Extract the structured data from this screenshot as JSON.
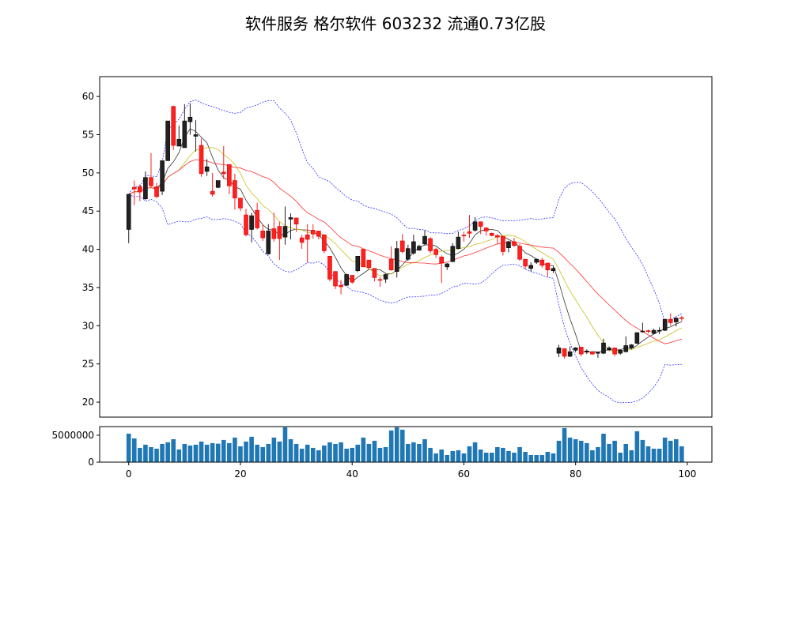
{
  "chart_data": {
    "type": "candlestick",
    "title": "软件服务 格尔软件 603232 流通0.73亿股",
    "xlim": [
      -5.2,
      104.4
    ],
    "ylim": [
      18.04,
      62.6
    ],
    "volume_ylim": [
      0,
      6600000
    ],
    "x_ticks": [
      0,
      20,
      40,
      60,
      80,
      100
    ],
    "y_ticks": [
      20,
      25,
      30,
      35,
      40,
      45,
      50,
      55,
      60
    ],
    "volume_y_ticks": [
      0,
      5000000
    ],
    "up_color": "#222222",
    "down_color": "#ff2020",
    "volume_color": "#1f77b4",
    "indicators": [
      {
        "name": "MA5",
        "window": 5,
        "color": "#333333"
      },
      {
        "name": "MA10",
        "window": 10,
        "color": "#c8c020"
      },
      {
        "name": "MA20",
        "window": 20,
        "color": "#ff3030"
      },
      {
        "name": "BOLL",
        "window": 20,
        "k": 2,
        "color": "#3030ff"
      }
    ],
    "ohlc": [
      [
        42.6,
        47.2,
        40.8,
        47.2
      ],
      [
        48.1,
        49.0,
        45.8,
        47.9
      ],
      [
        48.2,
        48.5,
        46.3,
        47.5
      ],
      [
        46.6,
        50.2,
        46.5,
        49.4
      ],
      [
        49.4,
        52.6,
        48.1,
        48.3
      ],
      [
        48.2,
        48.7,
        46.7,
        46.9
      ],
      [
        47.6,
        51.6,
        47.1,
        51.6
      ],
      [
        51.6,
        56.8,
        51.6,
        56.8
      ],
      [
        58.7,
        58.8,
        53.0,
        53.6
      ],
      [
        53.5,
        56.2,
        53.5,
        54.4
      ],
      [
        53.3,
        59.0,
        53.3,
        56.8
      ],
      [
        56.7,
        59.1,
        55.0,
        57.3
      ],
      [
        54.8,
        56.9,
        52.8,
        55.0
      ],
      [
        53.6,
        54.5,
        49.5,
        49.9
      ],
      [
        50.2,
        51.8,
        49.6,
        50.8
      ],
      [
        47.6,
        50.0,
        46.9,
        47.2
      ],
      [
        48.1,
        49.0,
        48.0,
        49.0
      ],
      [
        50.1,
        53.5,
        49.2,
        49.9
      ],
      [
        51.1,
        51.1,
        47.2,
        48.3
      ],
      [
        49.0,
        49.9,
        45.2,
        46.7
      ],
      [
        46.7,
        46.7,
        45.0,
        45.4
      ],
      [
        44.5,
        45.3,
        41.7,
        41.9
      ],
      [
        42.6,
        44.8,
        40.9,
        44.4
      ],
      [
        45.1,
        46.1,
        42.6,
        42.8
      ],
      [
        42.4,
        43.2,
        41.1,
        41.5
      ],
      [
        39.4,
        43.3,
        39.3,
        42.4
      ],
      [
        42.7,
        44.8,
        41.0,
        41.4
      ],
      [
        43.0,
        43.6,
        38.6,
        41.4
      ],
      [
        41.6,
        45.6,
        40.6,
        43.0
      ],
      [
        43.95,
        44.7,
        41.3,
        44.15
      ],
      [
        44.1,
        44.1,
        42.3,
        43.3
      ],
      [
        41.5,
        41.9,
        40.05,
        40.9
      ],
      [
        41.9,
        43.3,
        38.3,
        41.3
      ],
      [
        42.5,
        43.3,
        41.4,
        42.0
      ],
      [
        42.4,
        42.4,
        41.3,
        41.7
      ],
      [
        41.9,
        41.9,
        39.5,
        39.8
      ],
      [
        39.1,
        39.1,
        35.8,
        36.1
      ],
      [
        37.1,
        37.1,
        34.8,
        35.2
      ],
      [
        35.3,
        36.0,
        34.1,
        35.1
      ],
      [
        35.3,
        36.8,
        35.2,
        36.7
      ],
      [
        36.6,
        36.6,
        35.5,
        35.7
      ],
      [
        37.2,
        39.1,
        37.0,
        39.1
      ],
      [
        40.0,
        40.1,
        37.7,
        37.7
      ],
      [
        38.6,
        38.6,
        37.4,
        37.6
      ],
      [
        37.5,
        37.5,
        35.8,
        36.3
      ],
      [
        36.05,
        36.4,
        35.1,
        35.95
      ],
      [
        36.1,
        36.8,
        35.6,
        36.7
      ],
      [
        38.7,
        40.4,
        37.2,
        37.3
      ],
      [
        37.1,
        41.1,
        36.3,
        40.1
      ],
      [
        41.1,
        42.0,
        39.5,
        39.7
      ],
      [
        38.7,
        40.6,
        38.5,
        40.1
      ],
      [
        39.5,
        41.9,
        39.3,
        41.0
      ],
      [
        39.9,
        40.6,
        39.8,
        40.4
      ],
      [
        40.7,
        42.5,
        40.5,
        41.7
      ],
      [
        41.4,
        41.6,
        39.5,
        39.8
      ],
      [
        40.0,
        40.2,
        38.9,
        39.3
      ],
      [
        39.0,
        39.2,
        35.6,
        38.2
      ],
      [
        37.7,
        38.2,
        37.3,
        38.1
      ],
      [
        38.4,
        40.8,
        38.3,
        40.4
      ],
      [
        40.1,
        42.3,
        40.0,
        41.6
      ],
      [
        41.85,
        42.3,
        41.0,
        41.75
      ],
      [
        42.3,
        44.5,
        41.5,
        42.1
      ],
      [
        42.5,
        44.2,
        42.3,
        43.6
      ],
      [
        43.6,
        43.6,
        42.0,
        43.0
      ],
      [
        42.8,
        42.9,
        41.8,
        42.4
      ],
      [
        42.1,
        42.2,
        41.7,
        41.8
      ],
      [
        41.8,
        42.0,
        40.7,
        41.6
      ],
      [
        41.7,
        41.7,
        39.2,
        39.7
      ],
      [
        40.2,
        41.1,
        39.6,
        41.0
      ],
      [
        41.0,
        41.5,
        40.3,
        40.5
      ],
      [
        40.4,
        40.7,
        38.5,
        38.7
      ],
      [
        38.7,
        38.7,
        37.4,
        37.8
      ],
      [
        37.5,
        38.3,
        37.1,
        37.9
      ],
      [
        38.3,
        38.8,
        38.1,
        38.7
      ],
      [
        38.6,
        38.9,
        37.6,
        37.9
      ],
      [
        38.2,
        38.2,
        36.4,
        37.3
      ],
      [
        37.2,
        37.7,
        36.9,
        37.5
      ],
      [
        26.4,
        27.5,
        25.9,
        27.1
      ],
      [
        27.0,
        27.0,
        25.7,
        26.0
      ],
      [
        26.0,
        27.3,
        25.9,
        26.6
      ],
      [
        26.8,
        27.2,
        26.5,
        27.1
      ],
      [
        27.2,
        27.2,
        26.0,
        26.3
      ],
      [
        26.6,
        26.9,
        26.3,
        26.7
      ],
      [
        26.6,
        26.6,
        26.2,
        26.3
      ],
      [
        26.4,
        26.6,
        25.8,
        26.5
      ],
      [
        26.4,
        28.3,
        26.3,
        27.75
      ],
      [
        26.85,
        27.3,
        26.7,
        27.1
      ],
      [
        27.1,
        27.1,
        26.0,
        26.3
      ],
      [
        26.4,
        26.9,
        26.2,
        26.8
      ],
      [
        26.6,
        28.6,
        26.5,
        27.4
      ],
      [
        27.1,
        27.6,
        26.9,
        27.5
      ],
      [
        27.7,
        29.1,
        27.6,
        29.1
      ],
      [
        29.2,
        30.4,
        29.1,
        29.3
      ],
      [
        29.35,
        29.5,
        29.0,
        29.25
      ],
      [
        29.0,
        29.6,
        28.9,
        29.4
      ],
      [
        29.3,
        29.8,
        28.9,
        29.4
      ],
      [
        29.4,
        30.85,
        29.3,
        30.85
      ],
      [
        30.85,
        31.6,
        30.0,
        30.4
      ],
      [
        30.5,
        31.1,
        29.9,
        31.0
      ],
      [
        31.05,
        31.3,
        30.6,
        30.95
      ]
    ],
    "volume": [
      5290000,
      4410000,
      2650000,
      3240000,
      2790000,
      2500000,
      3380000,
      3680000,
      4260000,
      2350000,
      3380000,
      3090000,
      3240000,
      3820000,
      3240000,
      3530000,
      3430000,
      4120000,
      3530000,
      4560000,
      2940000,
      3820000,
      4710000,
      3240000,
      2790000,
      3380000,
      4560000,
      3820000,
      6470000,
      4260000,
      3380000,
      2500000,
      3240000,
      2650000,
      2210000,
      3090000,
      3680000,
      3380000,
      3680000,
      2500000,
      2650000,
      3240000,
      4560000,
      3380000,
      3970000,
      2650000,
      2790000,
      5880000,
      6470000,
      6030000,
      3380000,
      3680000,
      3380000,
      4260000,
      2650000,
      1620000,
      2350000,
      1320000,
      2060000,
      2210000,
      1620000,
      2940000,
      3680000,
      2350000,
      1760000,
      1760000,
      2790000,
      2650000,
      2060000,
      1760000,
      2790000,
      1910000,
      1320000,
      1320000,
      1320000,
      1910000,
      1620000,
      3970000,
      6320000,
      4560000,
      4260000,
      3970000,
      3530000,
      2210000,
      2790000,
      5290000,
      3380000,
      3970000,
      1760000,
      3380000,
      2210000,
      5740000,
      4120000,
      2940000,
      2500000,
      2500000,
      4560000,
      3970000,
      4260000,
      2940000
    ]
  }
}
